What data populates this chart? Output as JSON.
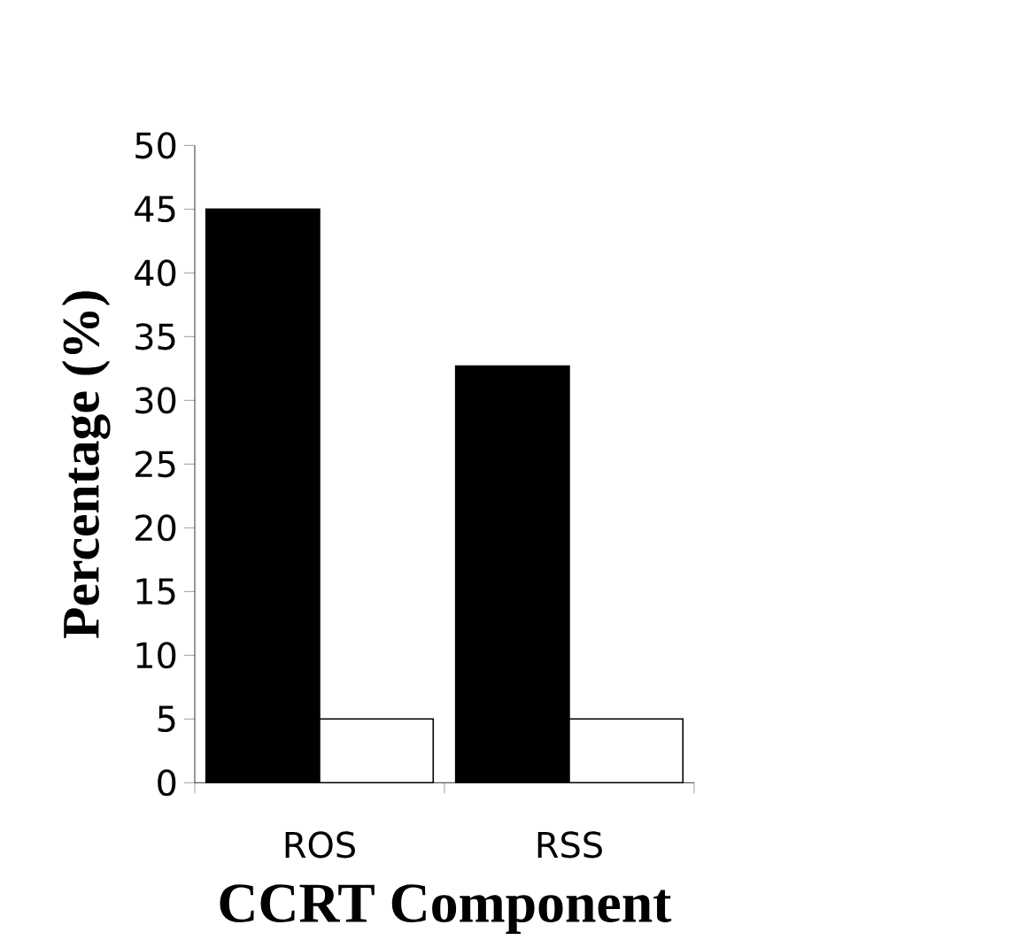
{
  "chart_data": {
    "type": "bar",
    "xlabel": "CCRT Component",
    "ylabel": "Percentage (%)",
    "categories": [
      "ROS",
      "RSS"
    ],
    "series": [
      {
        "color": "#000000",
        "values": [
          45,
          32.7
        ]
      },
      {
        "color": "#ffffff",
        "values": [
          5,
          5
        ]
      }
    ],
    "ylim": [
      0,
      50
    ],
    "yticks": [
      0,
      5,
      10,
      15,
      20,
      25,
      30,
      35,
      40,
      45,
      50
    ],
    "grid": false
  }
}
